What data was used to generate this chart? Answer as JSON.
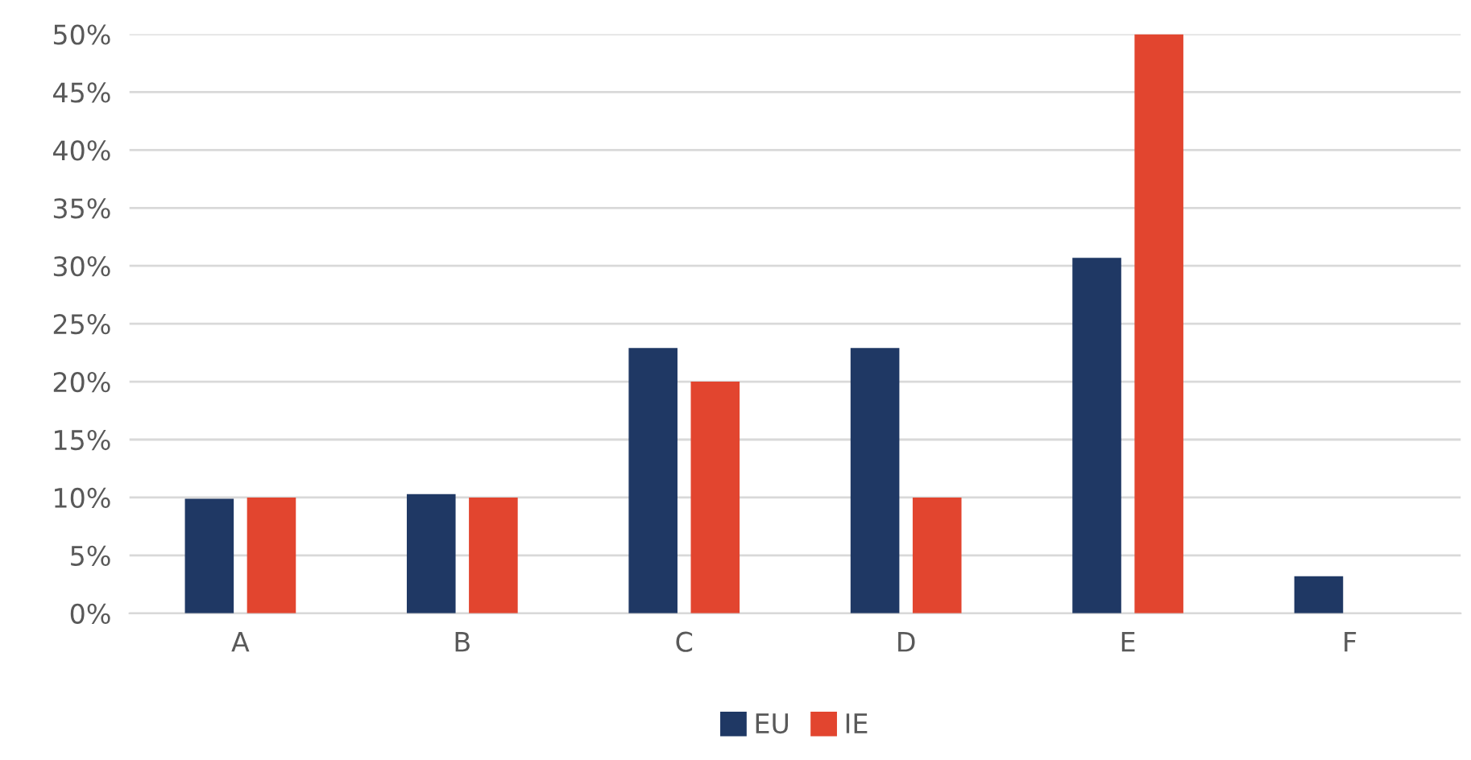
{
  "chart_data": {
    "type": "bar",
    "categories": [
      "A",
      "B",
      "C",
      "D",
      "E",
      "F"
    ],
    "series": [
      {
        "name": "EU",
        "color": "#1f3864",
        "values": [
          9.9,
          10.3,
          22.9,
          22.9,
          30.7,
          3.2
        ]
      },
      {
        "name": "IE",
        "color": "#e2452f",
        "values": [
          10,
          10,
          20,
          10,
          50,
          null
        ]
      }
    ],
    "ylim": [
      0,
      50
    ],
    "yticks": [
      {
        "value": 0,
        "label": "0%"
      },
      {
        "value": 5,
        "label": "5%"
      },
      {
        "value": 10,
        "label": "10%"
      },
      {
        "value": 15,
        "label": "15%"
      },
      {
        "value": 20,
        "label": "20%"
      },
      {
        "value": 25,
        "label": "25%"
      },
      {
        "value": 30,
        "label": "30%"
      },
      {
        "value": 35,
        "label": "35%"
      },
      {
        "value": 40,
        "label": "40%"
      },
      {
        "value": 45,
        "label": "45%"
      },
      {
        "value": 50,
        "label": "50%"
      }
    ],
    "grid": "y",
    "legend": "bottom"
  }
}
